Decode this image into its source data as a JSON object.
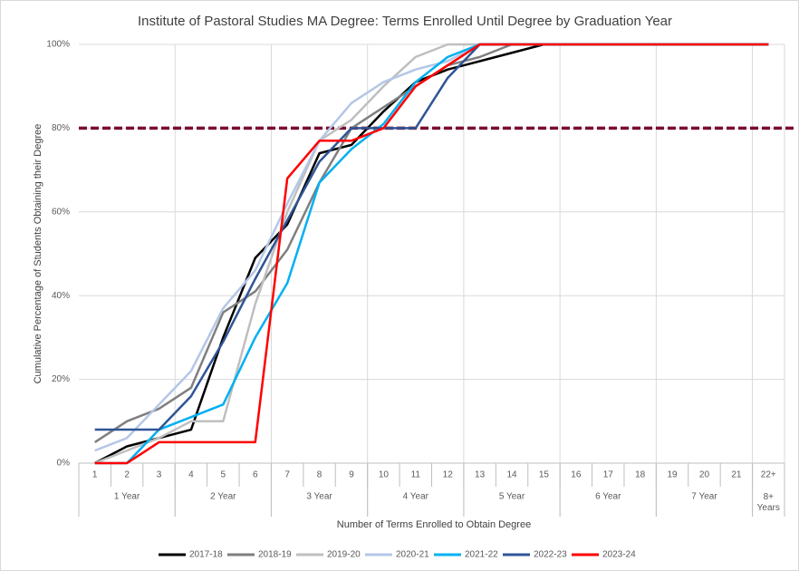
{
  "chart_data": {
    "type": "line",
    "title": "Institute of Pastoral Studies MA Degree: Terms Enrolled Until Degree by Graduation Year",
    "x_label": "Number of Terms Enrolled to Obtain Degree",
    "y_label": "Cumulative Percentage of Students Obtaining their Degree",
    "categories": [
      "1",
      "2",
      "3",
      "4",
      "5",
      "6",
      "7",
      "8",
      "9",
      "10",
      "11",
      "12",
      "13",
      "14",
      "15",
      "16",
      "17",
      "18",
      "19",
      "20",
      "21",
      "22+"
    ],
    "groups": [
      {
        "label": "1 Year",
        "span": 3
      },
      {
        "label": "2 Year",
        "span": 3
      },
      {
        "label": "3 Year",
        "span": 3
      },
      {
        "label": "4 Year",
        "span": 3
      },
      {
        "label": "5 Year",
        "span": 3
      },
      {
        "label": "6 Year",
        "span": 3
      },
      {
        "label": "7 Year",
        "span": 3
      },
      {
        "label": "8+ Years",
        "span": 1
      }
    ],
    "ylim": [
      0,
      100
    ],
    "yticks": [
      {
        "value": 0,
        "label": "0%"
      },
      {
        "value": 20,
        "label": "20%"
      },
      {
        "value": 40,
        "label": "40%"
      },
      {
        "value": 60,
        "label": "60%"
      },
      {
        "value": 80,
        "label": "80%"
      },
      {
        "value": 100,
        "label": "100%"
      }
    ],
    "grid": true,
    "reference_line": {
      "value": 80,
      "color": "#7b0c2e"
    },
    "legend": "bottom",
    "series": [
      {
        "name": "2017-18",
        "color": "#000000",
        "values": [
          0,
          4,
          6,
          8,
          30,
          49,
          57,
          74,
          76,
          84,
          91,
          94,
          96,
          98,
          100,
          100,
          100,
          100,
          100,
          100,
          100,
          100
        ]
      },
      {
        "name": "2018-19",
        "color": "#7f7f7f",
        "values": [
          5,
          10,
          13,
          18,
          36,
          41,
          51,
          67,
          80,
          85,
          90,
          95,
          97,
          100,
          100,
          100,
          100,
          100,
          100,
          100,
          100,
          100
        ]
      },
      {
        "name": "2019-20",
        "color": "#bfbfbf",
        "values": [
          0,
          3,
          6,
          10,
          10,
          38,
          60,
          77,
          82,
          90,
          97,
          100,
          100,
          100,
          100,
          100,
          100,
          100,
          100,
          100,
          100,
          100
        ]
      },
      {
        "name": "2020-21",
        "color": "#b4c7e7",
        "values": [
          3,
          6,
          14,
          22,
          37,
          46,
          62,
          77,
          86,
          91,
          94,
          96,
          100,
          100,
          100,
          100,
          100,
          100,
          100,
          100,
          100,
          100
        ]
      },
      {
        "name": "2021-22",
        "color": "#00b0f0",
        "values": [
          0,
          0,
          8,
          11,
          14,
          30,
          43,
          67,
          75,
          81,
          91,
          97,
          100,
          100,
          100,
          100,
          100,
          100,
          100,
          100,
          100,
          100
        ]
      },
      {
        "name": "2022-23",
        "color": "#2f5597",
        "values": [
          8,
          8,
          8,
          16,
          29,
          44,
          58,
          72,
          80,
          80,
          80,
          92,
          100,
          100,
          100,
          100,
          100,
          100,
          100,
          100,
          100,
          100
        ]
      },
      {
        "name": "2023-24",
        "color": "#ff0000",
        "values": [
          0,
          0,
          5,
          5,
          5,
          5,
          68,
          77,
          77,
          80,
          90,
          95,
          100,
          100,
          100,
          100,
          100,
          100,
          100,
          100,
          100,
          100
        ]
      }
    ]
  }
}
